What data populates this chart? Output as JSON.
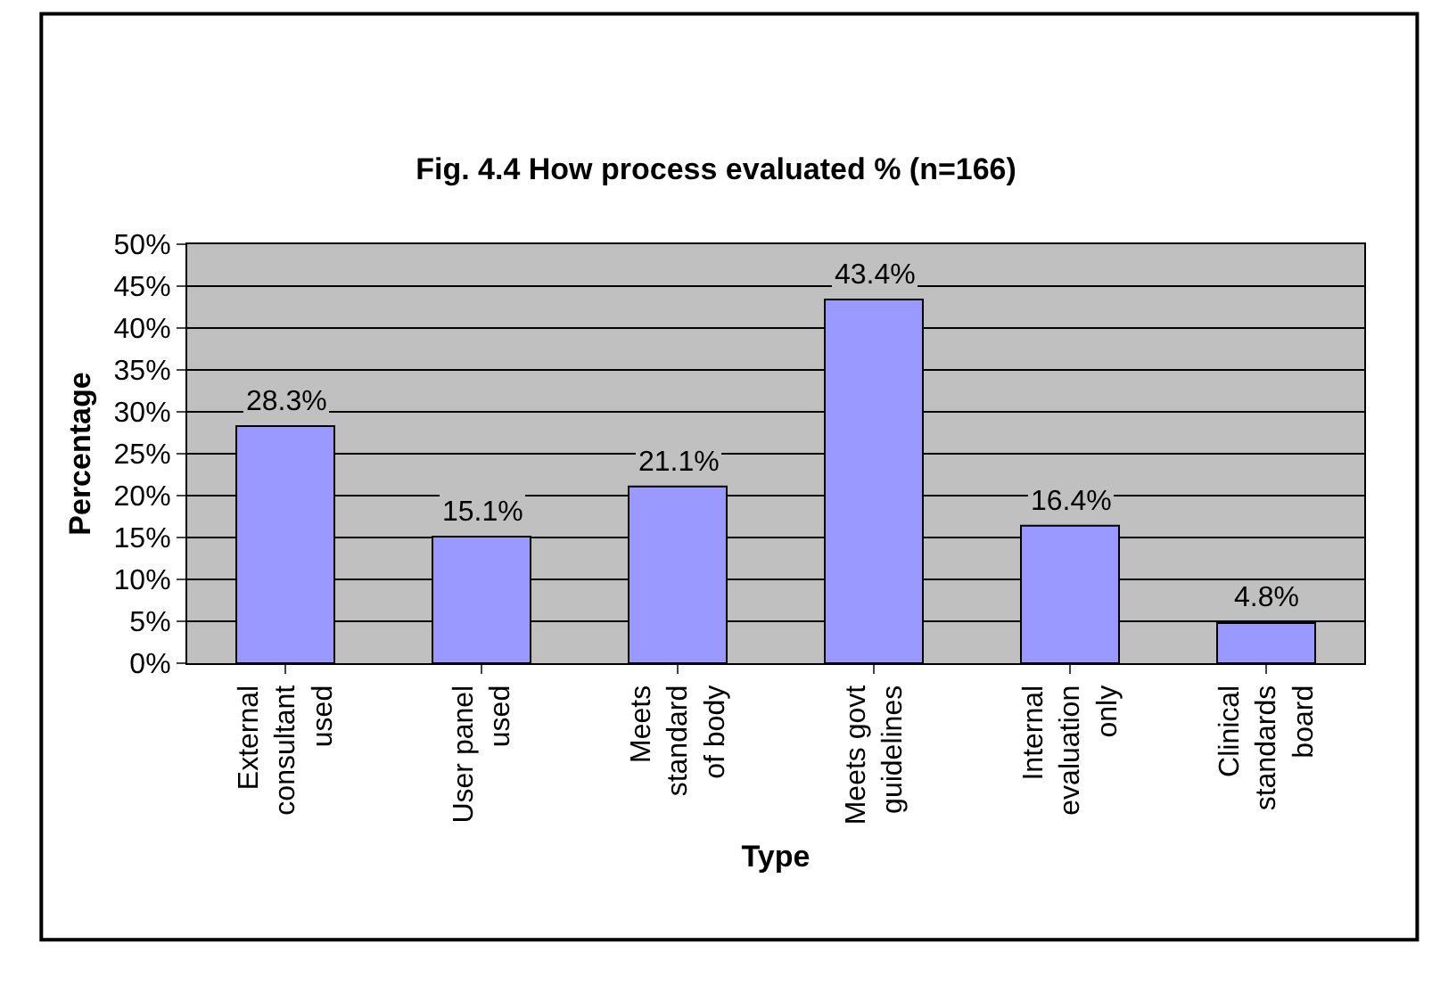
{
  "chart_data": {
    "type": "bar",
    "title": "Fig. 4.4 How process evaluated % (n=166)",
    "xlabel": "Type",
    "ylabel": "Percentage",
    "categories": [
      "External consultant used",
      "User panel used",
      "Meets standard of body",
      "Meets govt guidelines",
      "Internal evaluation only",
      "Clinical standards board"
    ],
    "values": [
      28.3,
      15.1,
      21.1,
      43.4,
      16.4,
      4.8
    ],
    "value_labels": [
      "28.3%",
      "15.1%",
      "21.1%",
      "43.4%",
      "16.4%",
      "4.8%"
    ],
    "color": "#9999ff",
    "ylim": [
      0,
      50
    ],
    "yticks": [
      {
        "value": 0,
        "label": "0%"
      },
      {
        "value": 5,
        "label": "5%"
      },
      {
        "value": 10,
        "label": "10%"
      },
      {
        "value": 15,
        "label": "15%"
      },
      {
        "value": 20,
        "label": "20%"
      },
      {
        "value": 25,
        "label": "25%"
      },
      {
        "value": 30,
        "label": "30%"
      },
      {
        "value": 35,
        "label": "35%"
      },
      {
        "value": 40,
        "label": "40%"
      },
      {
        "value": 45,
        "label": "45%"
      },
      {
        "value": 50,
        "label": "50%"
      }
    ],
    "grid": "y"
  }
}
